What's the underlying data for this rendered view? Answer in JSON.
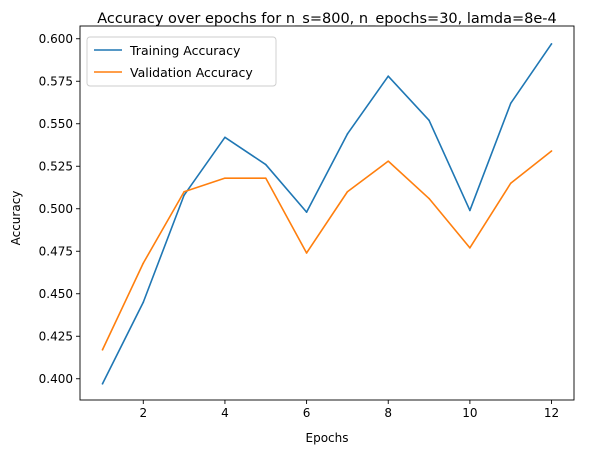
{
  "chart_data": {
    "type": "line",
    "title": "Accuracy over epochs for n_s=800, n_epochs=30, lamda=8e-4",
    "xlabel": "Epochs",
    "ylabel": "Accuracy",
    "x": [
      1,
      2,
      3,
      4,
      5,
      6,
      7,
      8,
      9,
      10,
      11,
      12
    ],
    "xlim": [
      0.45,
      12.55
    ],
    "ylim": [
      0.3875,
      0.6075
    ],
    "xticks": [
      2,
      4,
      6,
      8,
      10,
      12
    ],
    "yticks": [
      0.4,
      0.425,
      0.45,
      0.475,
      0.5,
      0.525,
      0.55,
      0.575,
      0.6
    ],
    "ytick_labels": [
      "0.400",
      "0.425",
      "0.450",
      "0.475",
      "0.500",
      "0.525",
      "0.550",
      "0.575",
      "0.600"
    ],
    "grid": false,
    "legend_position": "top-left",
    "series": [
      {
        "name": "Training Accuracy",
        "color": "#1f77b4",
        "values": [
          0.397,
          0.445,
          0.508,
          0.542,
          0.526,
          0.498,
          0.544,
          0.578,
          0.552,
          0.499,
          0.562,
          0.597
        ]
      },
      {
        "name": "Validation Accuracy",
        "color": "#ff7f0e",
        "values": [
          0.417,
          0.468,
          0.51,
          0.518,
          0.518,
          0.474,
          0.51,
          0.528,
          0.506,
          0.477,
          0.515,
          0.534
        ]
      }
    ]
  }
}
